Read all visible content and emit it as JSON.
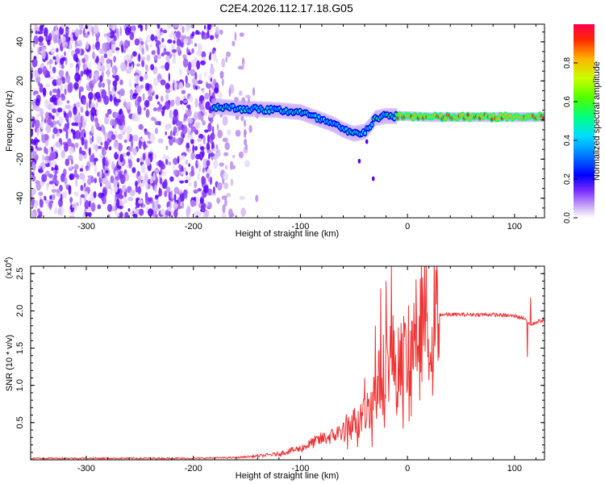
{
  "title": "C2E4.2026.112.17.18.G05",
  "chart_data": [
    {
      "type": "heatmap",
      "title": "C2E4.2026.112.17.18.G05",
      "xlabel": "Height of straight line (km)",
      "ylabel": "Frequency (Hz)",
      "xlim": [
        -352,
        128
      ],
      "ylim": [
        -50,
        49
      ],
      "xticks": [
        -300,
        -200,
        -100,
        0,
        100
      ],
      "xtick_labels": [
        "-300",
        "-200",
        "-100",
        "0",
        "100"
      ],
      "yticks": [
        -40,
        -20,
        0,
        20,
        40
      ],
      "ytick_labels": [
        "-40",
        "-20",
        "0",
        "20",
        "40"
      ],
      "colorbar": {
        "label": "Normalized spectral amplitude",
        "range": [
          0,
          1
        ],
        "ticks": [
          0.0,
          0.2,
          0.4,
          0.6,
          0.8
        ],
        "tick_labels": [
          "0.0",
          "0.2",
          "0.4",
          "0.6",
          "0.8"
        ],
        "colors": [
          "#ffffff",
          "#b98cf0",
          "#5a00ff",
          "#0000ff",
          "#0078ff",
          "#00dcff",
          "#00ff80",
          "#50ff00",
          "#c8ff00",
          "#ffb400",
          "#ff2800",
          "#ff0050"
        ]
      },
      "ridge": {
        "x": [
          -180,
          -160,
          -140,
          -120,
          -100,
          -90,
          -80,
          -70,
          -60,
          -50,
          -40,
          -35,
          -30,
          -20,
          -10,
          0,
          20,
          40,
          60,
          80,
          100,
          128
        ],
        "frequency": [
          7,
          6,
          5.5,
          5,
          4,
          2,
          0,
          -2,
          -5,
          -7,
          -6,
          -3,
          1,
          2,
          2,
          2,
          1.5,
          1.5,
          1.5,
          1.5,
          1.5,
          1.5
        ]
      },
      "noise_region": {
        "x_start": -352,
        "x_end": -178,
        "faint_until": -140
      }
    },
    {
      "type": "line",
      "title": "",
      "xlabel": "Height of straight line (km)",
      "ylabel": "SNR (10 * v/v)",
      "multiplier_label": "(x10",
      "multiplier_exponent": "4",
      "multiplier_suffix": ")",
      "xlim": [
        -352,
        128
      ],
      "ylim": [
        0,
        2.6
      ],
      "xticks": [
        -300,
        -200,
        -100,
        0,
        100
      ],
      "xtick_labels": [
        "-300",
        "-200",
        "-100",
        "0",
        "100"
      ],
      "yticks": [
        0.5,
        1.0,
        1.5,
        2.0,
        2.5
      ],
      "ytick_labels": [
        "0.5",
        "1.0",
        "1.5",
        "2.0",
        "2.5"
      ],
      "series": [
        {
          "name": "SNR",
          "color": "#ee3333",
          "envelope_x": [
            -352,
            -200,
            -160,
            -140,
            -120,
            -110,
            -100,
            -90,
            -80,
            -70,
            -60,
            -50,
            -40,
            -35,
            -30,
            -25,
            -20,
            -15,
            -10,
            -5,
            0,
            5,
            10,
            15,
            20,
            30,
            40,
            60,
            80,
            100,
            110,
            115,
            120,
            128
          ],
          "envelope_y": [
            0.02,
            0.02,
            0.03,
            0.05,
            0.08,
            0.12,
            0.15,
            0.22,
            0.28,
            0.32,
            0.4,
            0.5,
            0.6,
            0.75,
            0.9,
            1.1,
            1.3,
            1.4,
            1.35,
            1.35,
            1.4,
            1.55,
            1.8,
            1.9,
            1.9,
            1.95,
            1.95,
            1.95,
            1.95,
            1.93,
            1.9,
            1.8,
            1.85,
            1.88
          ],
          "spikes": [
            {
              "x": -15,
              "y": 2.6
            },
            {
              "x": -20,
              "y": 2.4
            },
            {
              "x": -25,
              "y": 2.3
            },
            {
              "x": -30,
              "y": 1.8
            },
            {
              "x": -12,
              "y": 1.0
            },
            {
              "x": -10,
              "y": 0.6
            },
            {
              "x": -5,
              "y": 1.7
            },
            {
              "x": -40,
              "y": 1.1
            },
            {
              "x": 112,
              "y": 1.38
            },
            {
              "x": 115,
              "y": 2.18
            }
          ]
        }
      ]
    }
  ]
}
